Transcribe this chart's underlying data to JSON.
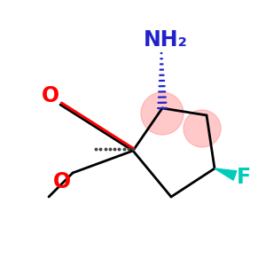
{
  "background_color": "#ffffff",
  "ring_color": "#000000",
  "nh2_label": "NH₂",
  "nh2_color": "#2222cc",
  "nh2_fontsize": 17,
  "f_label": "F",
  "f_color": "#00ccbb",
  "f_fontsize": 17,
  "o_double_label": "O",
  "o_double_color": "#ff0000",
  "o_double_fontsize": 17,
  "o_single_label": "O",
  "o_single_color": "#ff0000",
  "o_single_fontsize": 17,
  "stereo_circle_color": "#ff8888",
  "stereo_circle_alpha": 0.45,
  "lw": 2.0
}
